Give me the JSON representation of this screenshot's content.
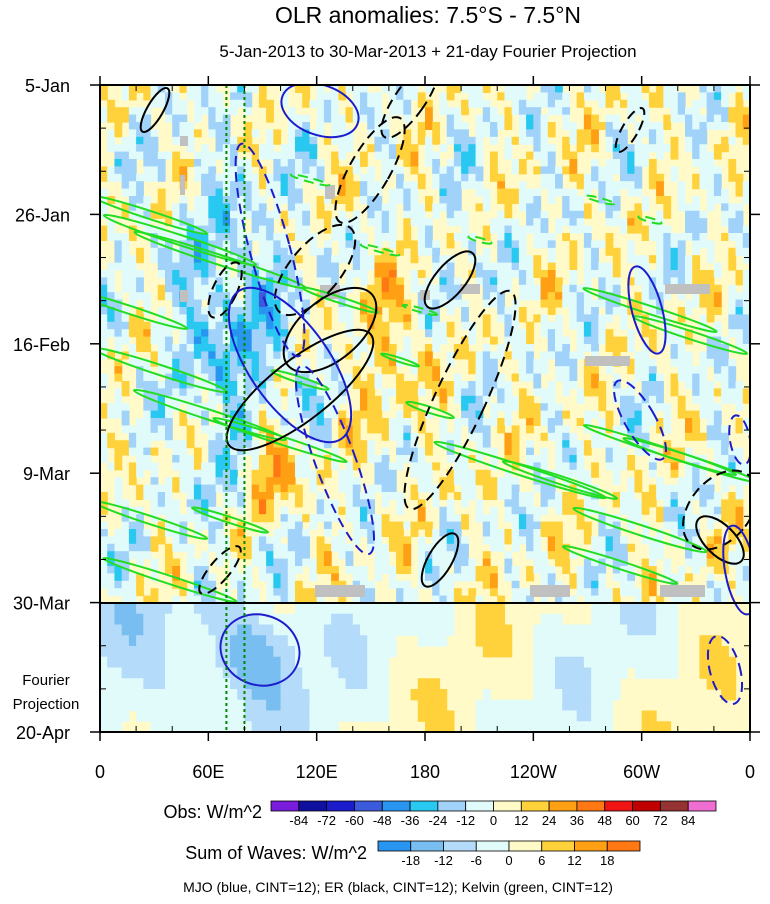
{
  "chart_data": {
    "type": "heatmap",
    "title": "OLR anomalies: 7.5°S - 7.5°N",
    "subtitle": "5-Jan-2013 to 30-Mar-2013 + 21-day Fourier Projection",
    "x_tick_labels": [
      "0",
      "60E",
      "120E",
      "180",
      "120W",
      "60W",
      "0"
    ],
    "x_range_deg_east": [
      0,
      360
    ],
    "y_tick_labels": [
      "5-Jan",
      "26-Jan",
      "16-Feb",
      "9-Mar",
      "30-Mar",
      "20-Apr"
    ],
    "y_range": [
      "5-Jan-2013",
      "20-Apr-2013"
    ],
    "observed_end": "30-Mar",
    "projection_label_line1": "Fourier",
    "projection_label_line2": "Projection",
    "grid": false,
    "legend_obs": {
      "title": "Obs: W/m^2",
      "levels": [
        "-84",
        "-72",
        "-60",
        "-48",
        "-36",
        "-24",
        "-12",
        "0",
        "12",
        "24",
        "36",
        "48",
        "60",
        "72",
        "84"
      ],
      "colors": [
        "#7a1cdc",
        "#1010a0",
        "#1c1ccc",
        "#3c5adc",
        "#2896f0",
        "#28c8f0",
        "#a0d2fa",
        "#e1fafa",
        "#fffac8",
        "#ffd23c",
        "#ffa014",
        "#ff7814",
        "#f01414",
        "#c00000",
        "#963232",
        "#f06ed2"
      ]
    },
    "legend_waves": {
      "title": "Sum of Waves: W/m^2",
      "levels": [
        "-18",
        "-12",
        "-6",
        "0",
        "6",
        "12",
        "18"
      ],
      "colors": [
        "#2896f0",
        "#78bef0",
        "#b4dcfa",
        "#e1fafa",
        "#fffac8",
        "#ffd23c",
        "#ffa014",
        "#ff7814"
      ]
    },
    "footnote": "MJO (blue, CINT=12); ER (black, CINT=12); Kelvin (green, CINT=12)",
    "contour_colors": {
      "mjo": "#1c1ccc",
      "er": "#000000",
      "kelvin": "#22dd22",
      "vertical_lines": "#008800"
    },
    "vertical_reference_lines_deg_east": [
      70,
      80
    ]
  }
}
